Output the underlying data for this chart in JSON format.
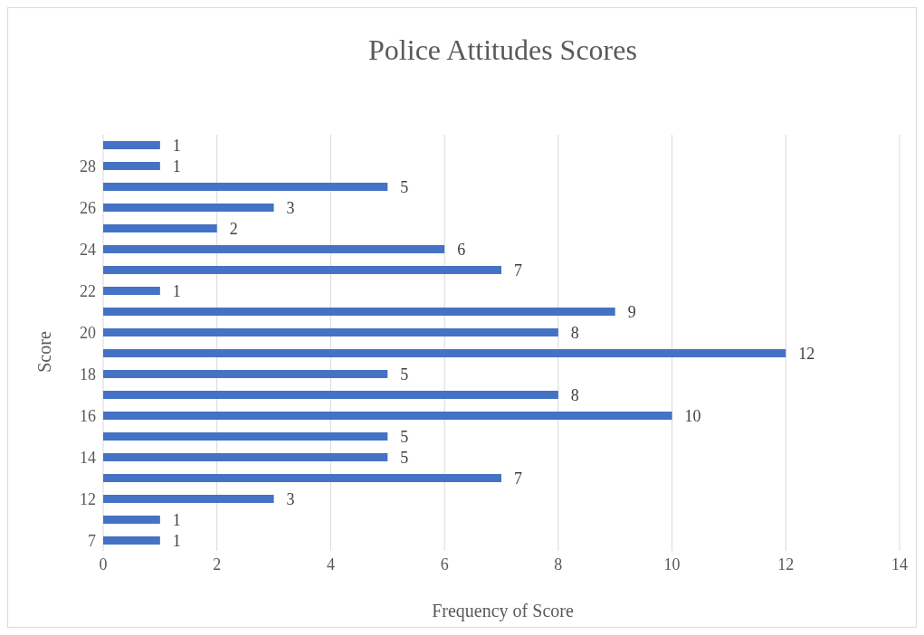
{
  "chart_data": {
    "type": "bar",
    "orientation": "horizontal",
    "title": "Police Attitudes Scores",
    "xlabel": "Frequency of Score",
    "ylabel": "Score",
    "categories": [
      null,
      "28",
      null,
      "26",
      null,
      "24",
      null,
      "22",
      null,
      "20",
      null,
      "18",
      null,
      "16",
      null,
      "14",
      null,
      "12",
      null,
      "7"
    ],
    "values": [
      1,
      1,
      5,
      3,
      2,
      6,
      7,
      1,
      9,
      8,
      12,
      5,
      8,
      10,
      5,
      5,
      7,
      3,
      1,
      1
    ],
    "color": "#4472c4",
    "xlim": [
      0,
      14
    ],
    "xticks": [
      0,
      2,
      4,
      6,
      8,
      10,
      12,
      14
    ],
    "grid": "x",
    "data_labels": true
  }
}
